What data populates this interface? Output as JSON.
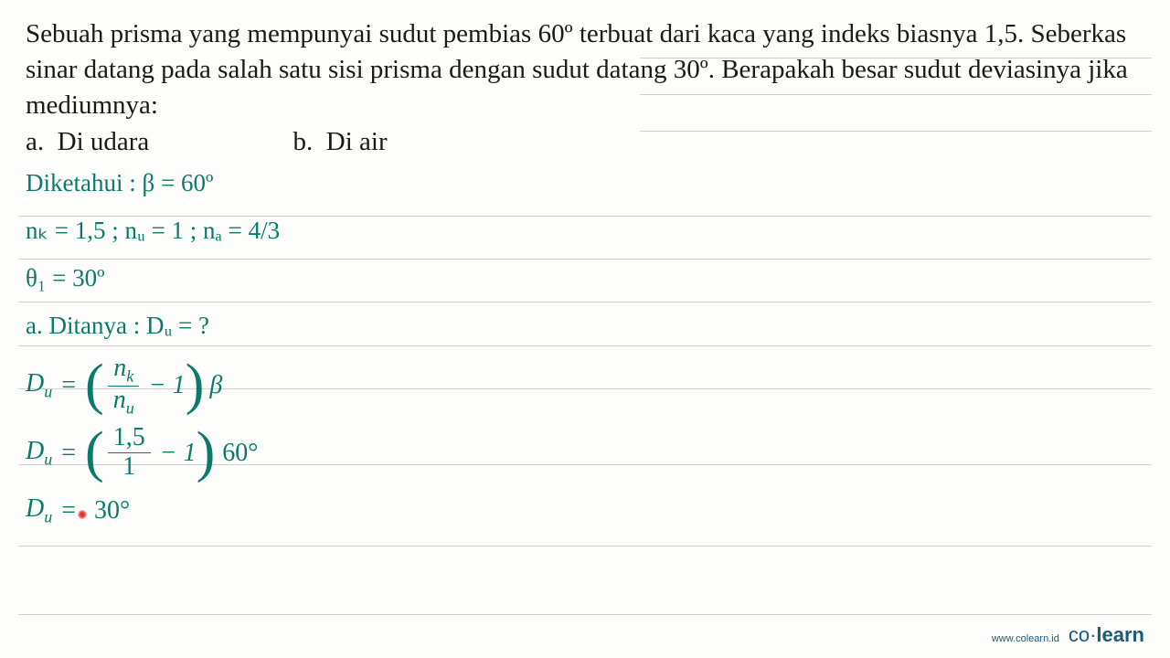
{
  "problem": {
    "text": "Sebuah prisma yang mempunyai sudut pembias 60º terbuat dari kaca yang indeks biasnya 1,5. Seberkas sinar datang pada salah satu sisi prisma dengan sudut datang 30º. Berapakah besar sudut deviasinya jika mediumnya:",
    "option_a": "Di udara",
    "option_b": "Di air"
  },
  "solution": {
    "diketahui_label": "Diketahui :",
    "beta_value": "β = 60º",
    "indices": "nₖ = 1,5 ; nᵤ = 1 ; nₐ = 4/3",
    "theta": "θ₁ = 30º",
    "ditanya": "a. Ditanya : Dᵤ = ?",
    "formula1": {
      "lhs_var": "D",
      "lhs_sub": "u",
      "frac_num": "n",
      "frac_num_sub": "k",
      "frac_den": "n",
      "frac_den_sub": "u",
      "minus": "− 1",
      "beta": "β"
    },
    "formula2": {
      "lhs_var": "D",
      "lhs_sub": "u",
      "frac_num": "1,5",
      "frac_den": "1",
      "minus": "− 1",
      "angle": "60°"
    },
    "result": {
      "lhs_var": "D",
      "lhs_sub": "u",
      "value": "30°"
    }
  },
  "footer": {
    "url": "www.colearn.id",
    "brand_part1": "co",
    "brand_dot": "·",
    "brand_part2": "learn"
  },
  "style": {
    "bg_color": "#fdfdfb",
    "rule_color": "#d0d0d0",
    "text_color": "#1a1a1a",
    "hand_color": "#0a7a6b",
    "brand_color": "#1a5c7a",
    "rule_positions": [
      63,
      103,
      143,
      236,
      283,
      330,
      378,
      425,
      508,
      597,
      672
    ],
    "rule_left_start_idx_for_short": 3
  }
}
